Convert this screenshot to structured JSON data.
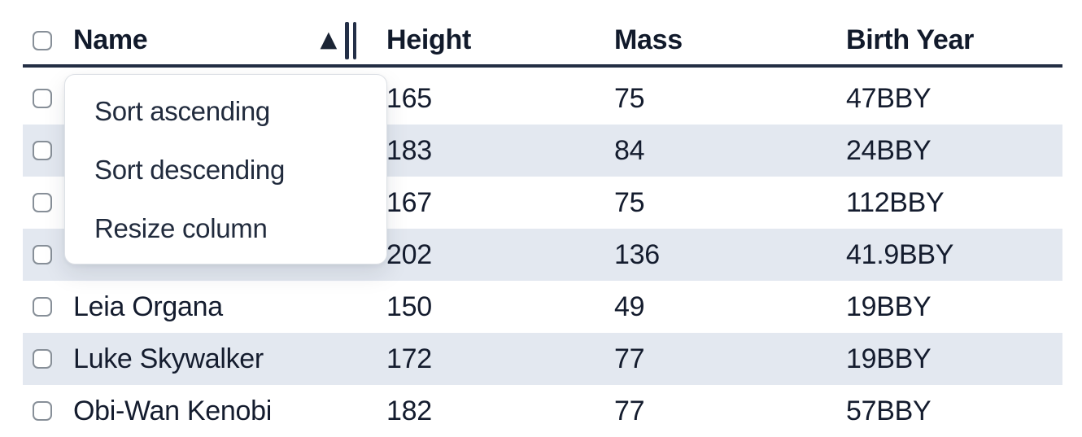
{
  "table": {
    "sort": {
      "column": "Name",
      "direction": "ascending",
      "indicator": "▲"
    },
    "select_all_checked": false,
    "columns": [
      {
        "label": "Name"
      },
      {
        "label": "Height"
      },
      {
        "label": "Mass"
      },
      {
        "label": "Birth Year"
      }
    ],
    "rows": [
      {
        "name": "",
        "height": "165",
        "mass": "75",
        "birth_year": "47BBY",
        "selected": false
      },
      {
        "name": "",
        "height": "183",
        "mass": "84",
        "birth_year": "24BBY",
        "selected": false
      },
      {
        "name": "",
        "height": "167",
        "mass": "75",
        "birth_year": "112BBY",
        "selected": false
      },
      {
        "name": "",
        "height": "202",
        "mass": "136",
        "birth_year": "41.9BBY",
        "selected": false
      },
      {
        "name": "Leia Organa",
        "height": "150",
        "mass": "49",
        "birth_year": "19BBY",
        "selected": false
      },
      {
        "name": "Luke Skywalker",
        "height": "172",
        "mass": "77",
        "birth_year": "19BBY",
        "selected": false
      },
      {
        "name": "Obi-Wan Kenobi",
        "height": "182",
        "mass": "77",
        "birth_year": "57BBY",
        "selected": false
      }
    ]
  },
  "column_menu": {
    "items": [
      {
        "label": "Sort ascending"
      },
      {
        "label": "Sort descending"
      },
      {
        "label": "Resize column"
      }
    ]
  },
  "colors": {
    "header_border": "#232e44",
    "row_stripe": "#e3e8f0",
    "text": "#141c2e",
    "checkbox_border": "#878f98",
    "menu_border": "#dde1e6"
  }
}
